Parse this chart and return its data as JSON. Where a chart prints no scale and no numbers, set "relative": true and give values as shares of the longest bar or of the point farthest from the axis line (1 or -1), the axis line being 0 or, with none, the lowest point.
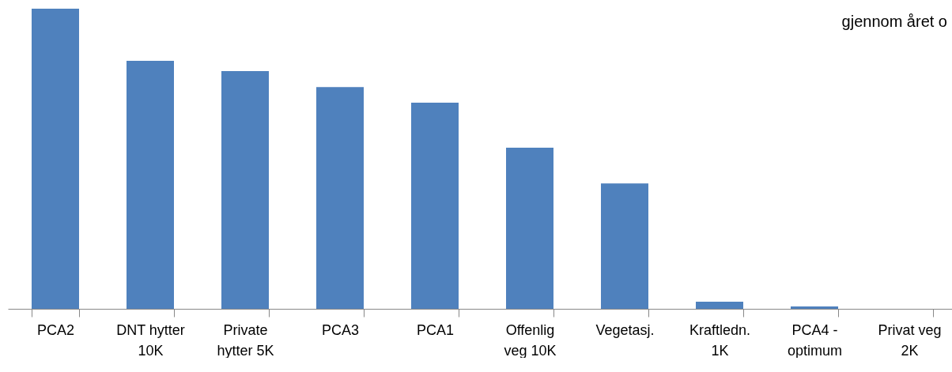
{
  "chart_data": {
    "type": "bar",
    "relative": true,
    "categories": [
      "PCA2",
      "DNT hytter 10K",
      "Private hytter 5K",
      "PCA3",
      "PCA1",
      "Offenlig veg 10K",
      "Vegetasj.",
      "Kraftledn. 1K",
      "PCA4 - optimum",
      "Privat veg 2K"
    ],
    "values": [
      1,
      0.826,
      0.792,
      0.739,
      0.687,
      0.537,
      0.418,
      0.024,
      0.008,
      0
    ],
    "color": "#4f81bd",
    "grid": false,
    "legend": false,
    "annotations": [
      "gjennom året o"
    ]
  }
}
